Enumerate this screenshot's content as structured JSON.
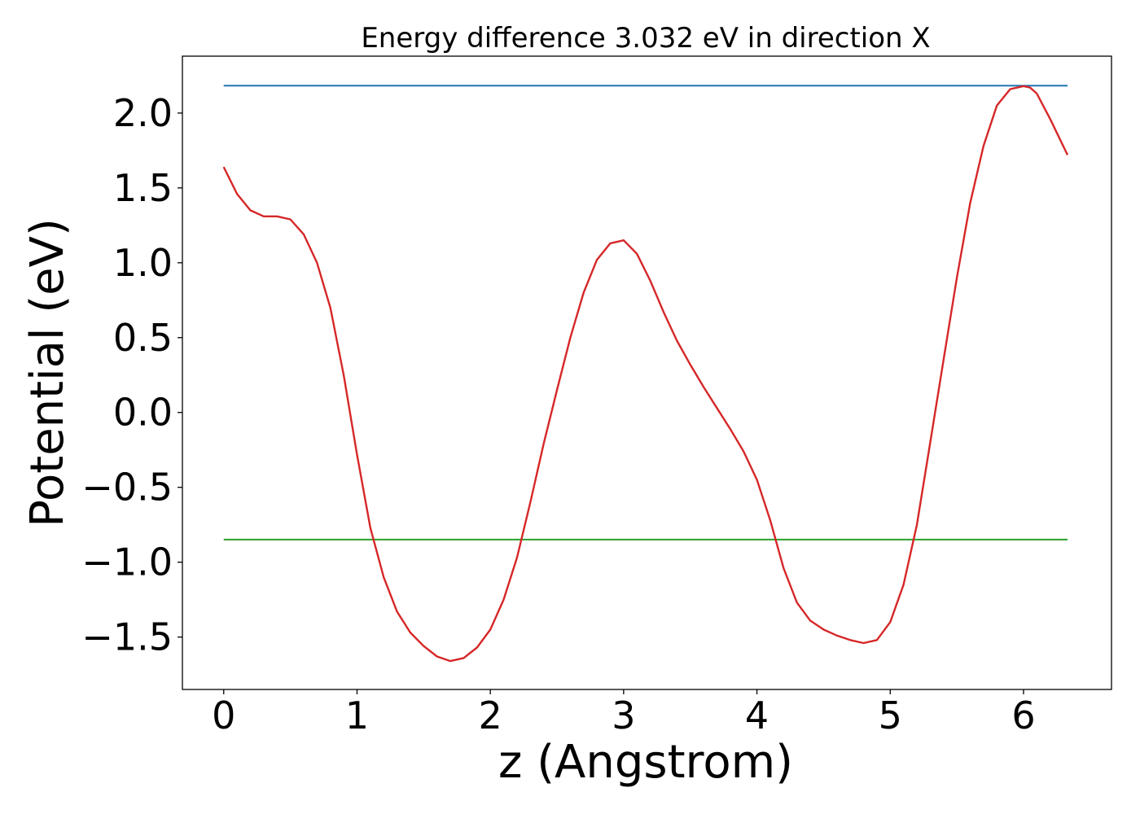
{
  "chart_data": {
    "type": "line",
    "title": "Energy difference 3.032 eV in direction X",
    "xlabel": "z (Angstrom)",
    "ylabel": "Potential (eV)",
    "xlim": [
      -0.31,
      6.66
    ],
    "ylim": [
      -1.85,
      2.38
    ],
    "xticks": [
      {
        "value": 0,
        "label": "0"
      },
      {
        "value": 1,
        "label": "1"
      },
      {
        "value": 2,
        "label": "2"
      },
      {
        "value": 3,
        "label": "3"
      },
      {
        "value": 4,
        "label": "4"
      },
      {
        "value": 5,
        "label": "5"
      },
      {
        "value": 6,
        "label": "6"
      }
    ],
    "yticks": [
      {
        "value": 2.0,
        "label": "2.0"
      },
      {
        "value": 1.5,
        "label": "1.5"
      },
      {
        "value": 1.0,
        "label": "1.0"
      },
      {
        "value": 0.5,
        "label": "0.5"
      },
      {
        "value": 0.0,
        "label": "0.0"
      },
      {
        "value": -0.5,
        "label": "−0.5"
      },
      {
        "value": -1.0,
        "label": "−1.0"
      },
      {
        "value": -1.5,
        "label": "−1.5"
      }
    ],
    "grid": false,
    "series": [
      {
        "color": "#1f77b4",
        "x": [
          0,
          6.33
        ],
        "y": [
          2.183,
          2.183
        ]
      },
      {
        "color": "#2ca02c",
        "x": [
          0,
          6.33
        ],
        "y": [
          -0.849,
          -0.849
        ]
      },
      {
        "color": "#d62728",
        "x": [
          0,
          0.1,
          0.2,
          0.3,
          0.4,
          0.5,
          0.6,
          0.7,
          0.8,
          0.9,
          1.0,
          1.1,
          1.2,
          1.3,
          1.4,
          1.5,
          1.6,
          1.7,
          1.8,
          1.9,
          2.0,
          2.1,
          2.2,
          2.3,
          2.4,
          2.5,
          2.6,
          2.7,
          2.8,
          2.9,
          3.0,
          3.1,
          3.2,
          3.3,
          3.4,
          3.5,
          3.6,
          3.7,
          3.8,
          3.9,
          4.0,
          4.1,
          4.2,
          4.3,
          4.4,
          4.5,
          4.6,
          4.7,
          4.8,
          4.9,
          5.0,
          5.1,
          5.2,
          5.3,
          5.4,
          5.5,
          5.6,
          5.7,
          5.8,
          5.9,
          6.0,
          6.05,
          6.1,
          6.2,
          6.33
        ],
        "y": [
          1.64,
          1.46,
          1.35,
          1.31,
          1.31,
          1.29,
          1.19,
          1.0,
          0.7,
          0.25,
          -0.28,
          -0.77,
          -1.1,
          -1.33,
          -1.47,
          -1.56,
          -1.63,
          -1.66,
          -1.64,
          -1.57,
          -1.45,
          -1.25,
          -0.97,
          -0.6,
          -0.21,
          0.15,
          0.5,
          0.8,
          1.02,
          1.13,
          1.15,
          1.06,
          0.88,
          0.67,
          0.48,
          0.32,
          0.17,
          0.03,
          -0.11,
          -0.26,
          -0.45,
          -0.72,
          -1.04,
          -1.27,
          -1.39,
          -1.45,
          -1.49,
          -1.52,
          -1.54,
          -1.52,
          -1.4,
          -1.15,
          -0.75,
          -0.2,
          0.35,
          0.9,
          1.4,
          1.78,
          2.05,
          2.16,
          2.18,
          2.17,
          2.13,
          1.96,
          1.72
        ]
      }
    ]
  }
}
